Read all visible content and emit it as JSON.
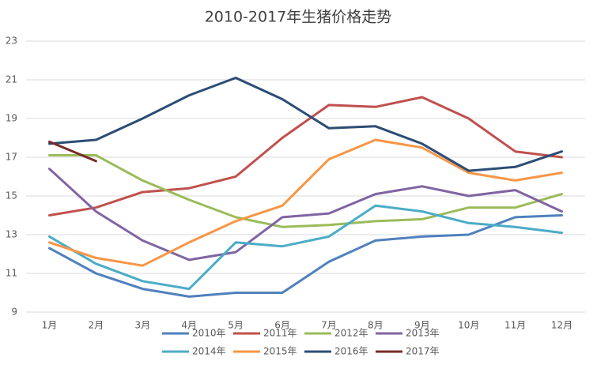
{
  "chart_data": {
    "type": "line",
    "title": "2010-2017年生猪价格走势",
    "categories": [
      "1月",
      "2月",
      "3月",
      "4月",
      "5月",
      "6月",
      "7月",
      "8月",
      "9月",
      "10月",
      "11月",
      "12月"
    ],
    "ylim": [
      9,
      23
    ],
    "yticks": [
      9,
      11,
      13,
      15,
      17,
      19,
      21,
      23
    ],
    "grid": true,
    "legend": "bottom",
    "series": [
      {
        "name": "2010年",
        "color": "#4f81bd",
        "values": [
          12.3,
          11.0,
          10.2,
          9.8,
          10.0,
          10.0,
          11.6,
          12.7,
          12.9,
          13.0,
          13.9,
          14.0
        ]
      },
      {
        "name": "2011年",
        "color": "#c0504d",
        "values": [
          14.0,
          14.4,
          15.2,
          15.4,
          16.0,
          18.0,
          19.7,
          19.6,
          20.1,
          19.0,
          17.3,
          17.0
        ]
      },
      {
        "name": "2012年",
        "color": "#9bbb59",
        "values": [
          17.1,
          17.1,
          15.8,
          14.8,
          13.9,
          13.4,
          13.5,
          13.7,
          13.8,
          14.4,
          14.4,
          15.1
        ]
      },
      {
        "name": "2013年",
        "color": "#8064a2",
        "values": [
          16.4,
          14.2,
          12.7,
          11.7,
          12.1,
          13.9,
          14.1,
          15.1,
          15.5,
          15.0,
          15.3,
          14.2
        ]
      },
      {
        "name": "2014年",
        "color": "#4bacc6",
        "values": [
          12.9,
          11.5,
          10.6,
          10.2,
          12.6,
          12.4,
          12.9,
          14.5,
          14.2,
          13.6,
          13.4,
          13.1
        ]
      },
      {
        "name": "2015年",
        "color": "#f79646",
        "values": [
          12.6,
          11.8,
          11.4,
          12.6,
          13.7,
          14.5,
          16.9,
          17.9,
          17.5,
          16.2,
          15.8,
          16.2
        ]
      },
      {
        "name": "2016年",
        "color": "#2c4d75",
        "values": [
          17.7,
          17.9,
          19.0,
          20.2,
          21.1,
          20.0,
          18.5,
          18.6,
          17.7,
          16.3,
          16.5,
          17.3
        ]
      },
      {
        "name": "2017年",
        "color": "#772c2a",
        "values": [
          17.8,
          16.8,
          null,
          null,
          null,
          null,
          null,
          null,
          null,
          null,
          null,
          null
        ]
      }
    ]
  }
}
